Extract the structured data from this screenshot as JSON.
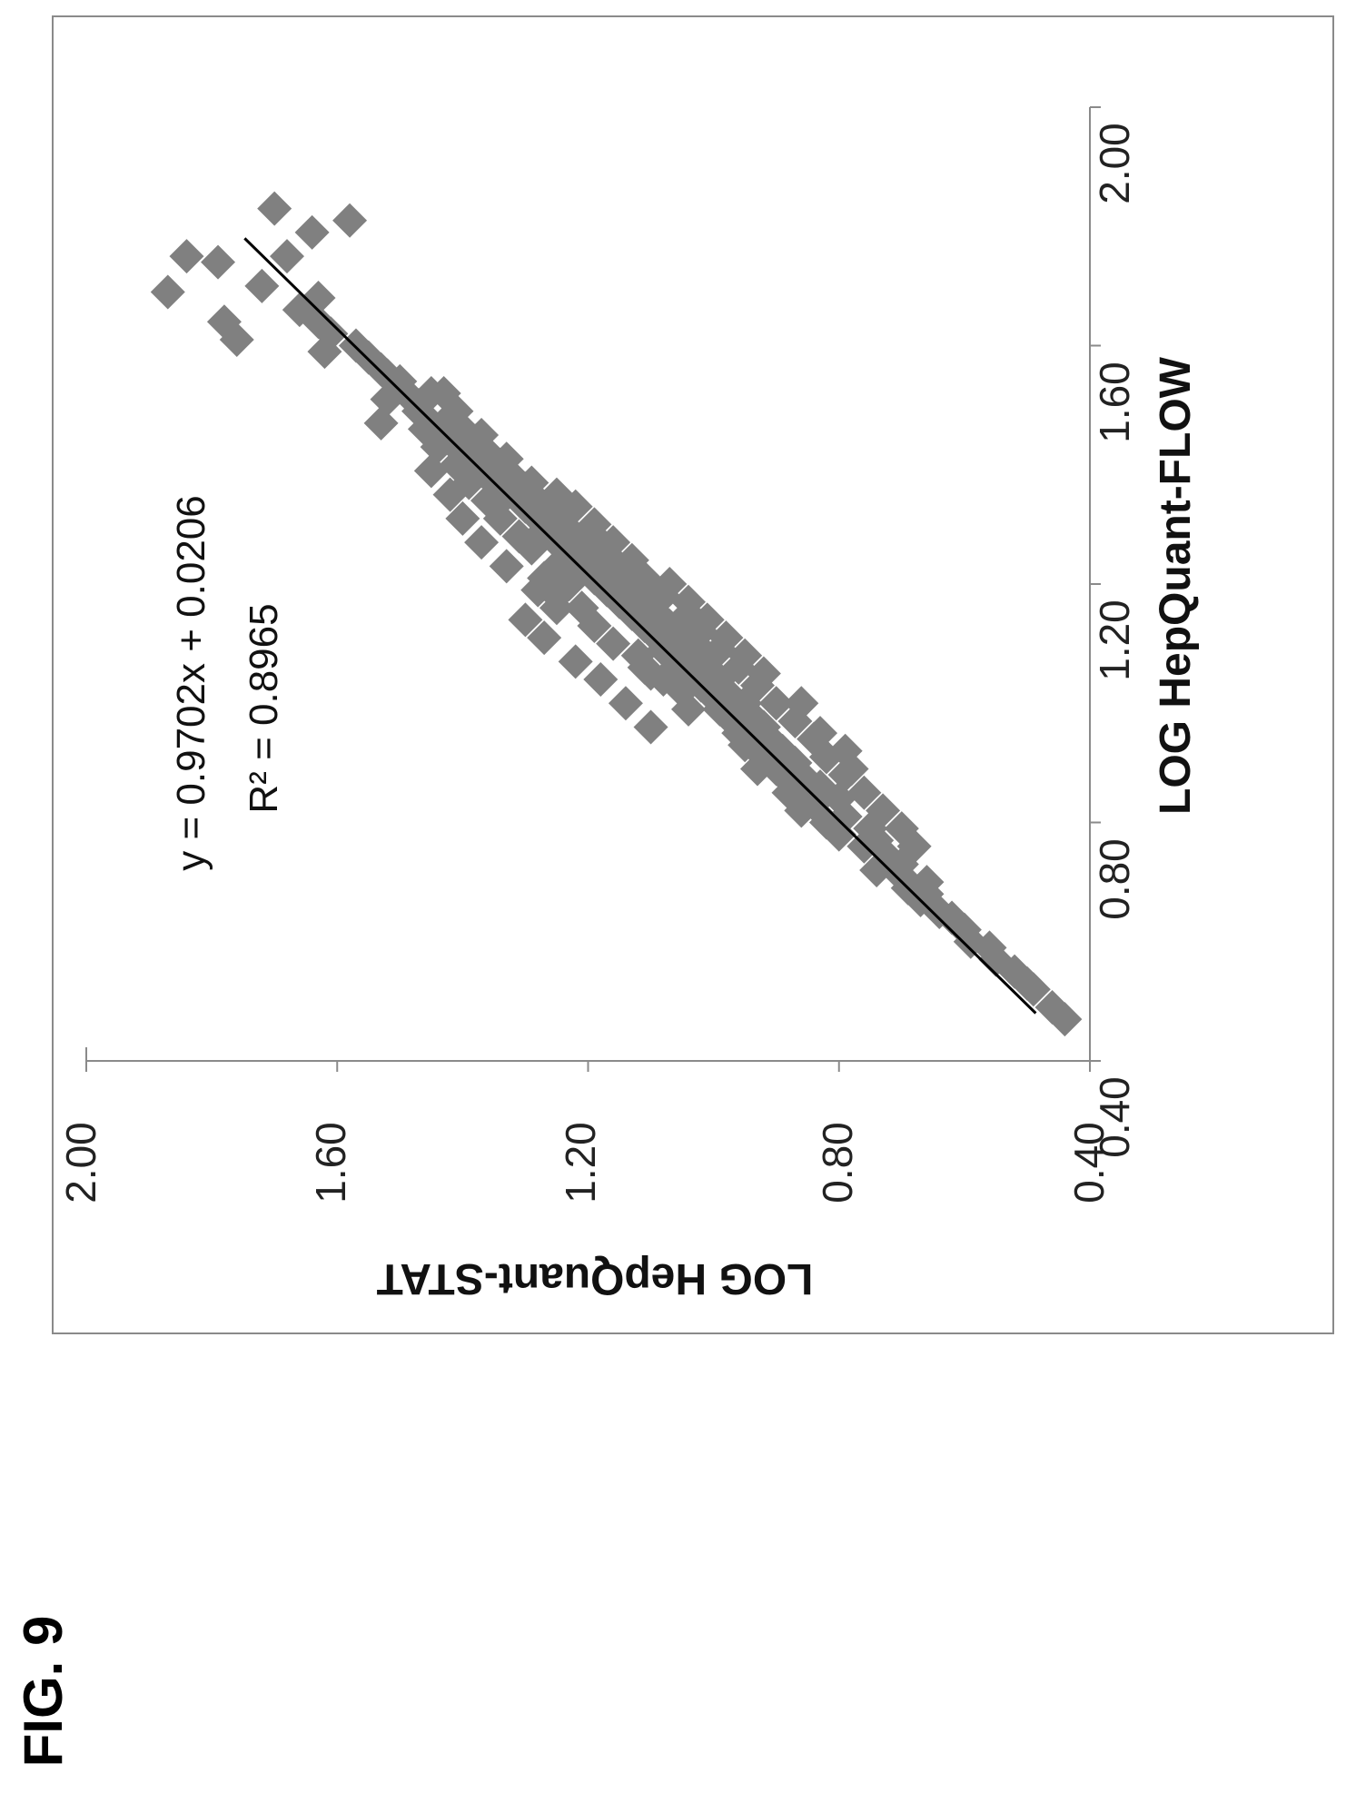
{
  "figure_label": "FIG. 9",
  "chart_data": {
    "type": "scatter",
    "xlabel": "LOG HepQuant-FLOW",
    "ylabel": "LOG HepQuant-STAT",
    "xlim": [
      0.4,
      2.0
    ],
    "ylim": [
      0.4,
      2.0
    ],
    "x_ticks": [
      "0.40",
      "0.80",
      "1.20",
      "1.60",
      "2.00"
    ],
    "y_ticks": [
      "0.40",
      "0.80",
      "1.20",
      "1.60",
      "2.00"
    ],
    "marker": "diamond",
    "marker_color": "#808080",
    "line_color": "#000000",
    "grid": false,
    "orientation": "rotated 90 degrees counter-clockwise",
    "trendline": {
      "equation": "y = 0.9702x + 0.0206",
      "r_squared": "R² = 0.8965",
      "slope": 0.9702,
      "intercept": 0.0206,
      "x_range": [
        0.48,
        1.78
      ]
    },
    "points": [
      [
        0.47,
        0.44
      ],
      [
        0.49,
        0.46
      ],
      [
        0.52,
        0.49
      ],
      [
        0.53,
        0.5
      ],
      [
        0.55,
        0.52
      ],
      [
        0.57,
        0.55
      ],
      [
        0.59,
        0.56
      ],
      [
        0.6,
        0.59
      ],
      [
        0.62,
        0.6
      ],
      [
        0.64,
        0.62
      ],
      [
        0.65,
        0.64
      ],
      [
        0.67,
        0.67
      ],
      [
        0.68,
        0.66
      ],
      [
        0.69,
        0.69
      ],
      [
        0.7,
        0.66
      ],
      [
        0.71,
        0.7
      ],
      [
        0.72,
        0.74
      ],
      [
        0.73,
        0.7
      ],
      [
        0.74,
        0.72
      ],
      [
        0.76,
        0.76
      ],
      [
        0.77,
        0.74
      ],
      [
        0.78,
        0.8
      ],
      [
        0.79,
        0.75
      ],
      [
        0.8,
        0.82
      ],
      [
        0.81,
        0.79
      ],
      [
        0.83,
        0.84
      ],
      [
        0.84,
        0.8
      ],
      [
        0.85,
        0.86
      ],
      [
        0.86,
        0.83
      ],
      [
        0.87,
        0.88
      ],
      [
        0.88,
        0.86
      ],
      [
        0.89,
        0.9
      ],
      [
        0.9,
        0.87
      ],
      [
        0.91,
        0.92
      ],
      [
        0.92,
        0.89
      ],
      [
        0.93,
        0.93
      ],
      [
        0.94,
        0.91
      ],
      [
        0.95,
        0.96
      ],
      [
        0.96,
        0.92
      ],
      [
        0.97,
        0.97
      ],
      [
        0.98,
        0.94
      ],
      [
        0.99,
        0.99
      ],
      [
        1.0,
        0.95
      ],
      [
        1.01,
        1.0
      ],
      [
        1.02,
        0.98
      ],
      [
        1.03,
        1.02
      ],
      [
        1.04,
        0.99
      ],
      [
        1.05,
        1.04
      ],
      [
        1.06,
        1.01
      ],
      [
        1.07,
        1.06
      ],
      [
        1.08,
        1.03
      ],
      [
        1.09,
        1.08
      ],
      [
        1.1,
        1.05
      ],
      [
        1.11,
        1.09
      ],
      [
        1.12,
        1.07
      ],
      [
        1.13,
        1.11
      ],
      [
        1.14,
        1.08
      ],
      [
        1.15,
        1.13
      ],
      [
        1.16,
        1.1
      ],
      [
        1.17,
        1.15
      ],
      [
        1.18,
        1.12
      ],
      [
        1.19,
        1.17
      ],
      [
        1.2,
        1.14
      ],
      [
        1.21,
        1.19
      ],
      [
        1.22,
        1.16
      ],
      [
        1.23,
        1.21
      ],
      [
        1.24,
        1.18
      ],
      [
        1.25,
        1.23
      ],
      [
        1.26,
        1.2
      ],
      [
        1.27,
        1.25
      ],
      [
        1.28,
        1.22
      ],
      [
        1.29,
        1.27
      ],
      [
        1.3,
        1.24
      ],
      [
        1.31,
        1.28
      ],
      [
        1.32,
        1.26
      ],
      [
        1.33,
        1.3
      ],
      [
        1.34,
        1.28
      ],
      [
        1.35,
        1.33
      ],
      [
        1.36,
        1.3
      ],
      [
        1.37,
        1.35
      ],
      [
        1.38,
        1.32
      ],
      [
        1.39,
        1.37
      ],
      [
        1.4,
        1.34
      ],
      [
        1.41,
        1.39
      ],
      [
        1.42,
        1.36
      ],
      [
        1.43,
        1.41
      ],
      [
        1.44,
        1.38
      ],
      [
        1.45,
        1.43
      ],
      [
        1.46,
        1.4
      ],
      [
        1.47,
        1.45
      ],
      [
        1.48,
        1.42
      ],
      [
        1.5,
        1.47
      ],
      [
        1.52,
        1.45
      ],
      [
        1.54,
        1.5
      ],
      [
        1.56,
        1.53
      ],
      [
        1.58,
        1.55
      ],
      [
        1.6,
        1.57
      ],
      [
        1.62,
        1.61
      ],
      [
        1.64,
        1.63
      ],
      [
        1.66,
        1.66
      ],
      [
        1.68,
        1.63
      ],
      [
        1.7,
        1.72
      ],
      [
        1.75,
        1.68
      ],
      [
        1.79,
        1.64
      ],
      [
        1.81,
        1.58
      ],
      [
        1.83,
        1.7
      ],
      [
        1.74,
        1.79
      ],
      [
        1.75,
        1.84
      ],
      [
        1.69,
        1.87
      ],
      [
        1.64,
        1.78
      ],
      [
        1.61,
        1.76
      ],
      [
        1.59,
        1.62
      ],
      [
        1.51,
        1.52
      ],
      [
        1.47,
        1.53
      ],
      [
        1.43,
        1.44
      ],
      [
        1.39,
        1.45
      ],
      [
        1.35,
        1.42
      ],
      [
        1.31,
        1.4
      ],
      [
        1.27,
        1.37
      ],
      [
        1.23,
        1.33
      ],
      [
        1.19,
        1.28
      ],
      [
        1.16,
        1.25
      ],
      [
        1.14,
        1.3
      ],
      [
        1.11,
        1.27
      ],
      [
        1.07,
        1.22
      ],
      [
        1.04,
        1.18
      ],
      [
        1.0,
        1.14
      ],
      [
        0.96,
        1.1
      ],
      [
        0.99,
        1.04
      ],
      [
        1.02,
        1.05
      ],
      [
        1.05,
        1.1
      ],
      [
        1.08,
        1.12
      ],
      [
        1.1,
        1.16
      ],
      [
        1.13,
        1.19
      ],
      [
        1.16,
        1.21
      ],
      [
        1.2,
        1.23
      ],
      [
        1.23,
        1.25
      ],
      [
        1.26,
        1.29
      ],
      [
        1.28,
        1.31
      ],
      [
        1.31,
        1.34
      ],
      [
        1.34,
        1.36
      ],
      [
        1.37,
        1.39
      ],
      [
        1.4,
        1.41
      ],
      [
        1.43,
        1.44
      ],
      [
        1.46,
        1.46
      ],
      [
        1.49,
        1.47
      ],
      [
        1.52,
        1.49
      ],
      [
        1.55,
        1.52
      ],
      [
        1.33,
        1.22
      ],
      [
        1.3,
        1.19
      ],
      [
        1.27,
        1.16
      ],
      [
        1.24,
        1.13
      ],
      [
        1.21,
        1.11
      ],
      [
        1.18,
        1.08
      ],
      [
        1.15,
        1.04
      ],
      [
        1.12,
        1.02
      ],
      [
        1.09,
        0.99
      ],
      [
        1.06,
        0.96
      ],
      [
        1.03,
        0.93
      ],
      [
        1.0,
        0.9
      ],
      [
        0.97,
        0.87
      ],
      [
        0.94,
        0.84
      ],
      [
        0.91,
        0.82
      ],
      [
        0.88,
        0.79
      ],
      [
        0.85,
        0.76
      ],
      [
        0.82,
        0.73
      ],
      [
        0.79,
        0.7
      ],
      [
        0.76,
        0.68
      ],
      [
        1.37,
        1.29
      ],
      [
        1.35,
        1.25
      ],
      [
        1.41,
        1.33
      ],
      [
        1.45,
        1.37
      ],
      [
        1.49,
        1.41
      ],
      [
        1.52,
        1.43
      ],
      [
        1.0,
        0.86
      ],
      [
        0.95,
        0.83
      ],
      [
        0.92,
        0.79
      ],
      [
        0.89,
        0.78
      ],
      [
        1.05,
        0.92
      ],
      [
        1.08,
        0.95
      ],
      [
        1.11,
        0.98
      ],
      [
        1.14,
        1.01
      ],
      [
        1.17,
        1.04
      ],
      [
        1.2,
        1.07
      ],
      [
        1.1,
        1.03
      ],
      [
        1.12,
        1.05
      ],
      [
        1.18,
        1.1
      ],
      [
        1.22,
        1.13
      ],
      [
        1.25,
        1.17
      ],
      [
        1.28,
        1.19
      ],
      [
        1.18,
        1.25
      ],
      [
        1.21,
        1.27
      ],
      [
        1.09,
        1.02
      ],
      [
        1.13,
        1.07
      ],
      [
        0.93,
        0.95
      ],
      [
        0.89,
        0.93
      ],
      [
        0.85,
        0.88
      ],
      [
        0.82,
        0.86
      ],
      [
        1.04,
        1.08
      ],
      [
        1.06,
        1.11
      ]
    ]
  }
}
